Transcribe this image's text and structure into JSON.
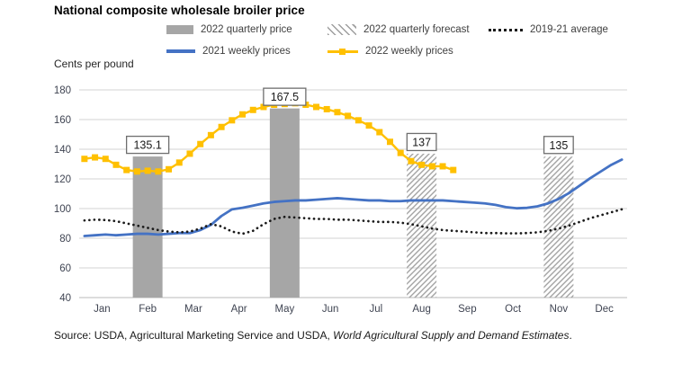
{
  "title": "National composite wholesale broiler price",
  "y_axis_title": "Cents per pound",
  "legend": {
    "row1": [
      {
        "label": "2022 quarterly price",
        "swatch": "bar-solid",
        "color": "#a6a6a6"
      },
      {
        "label": "2022 quarterly forecast",
        "swatch": "bar-hatched",
        "color": "#9e9e9e"
      },
      {
        "label": "2019-21 average",
        "swatch": "line-dotted",
        "color": "#1a1a1a"
      }
    ],
    "row2": [
      {
        "label": "2021 weekly prices",
        "swatch": "line-solid",
        "color": "#4472c4"
      },
      {
        "label": "2022 weekly prices",
        "swatch": "line-marker",
        "color": "#ffc000"
      }
    ]
  },
  "source": {
    "prefix": "Source: USDA, Agricultural Marketing Service and USDA, ",
    "italic": "World Agricultural Supply and Demand Estimates",
    "suffix": "."
  },
  "chart_data": {
    "type": "line+bar",
    "title": "National composite wholesale broiler price",
    "xlabel": "",
    "ylabel": "Cents per pound",
    "ylim": [
      40,
      180
    ],
    "y_ticks": [
      180,
      160,
      140,
      120,
      100,
      80,
      60,
      40
    ],
    "grid": "horizontal",
    "grid_color": "#dcdcdc",
    "axis_line_color": "#c8c8c8",
    "legend_position": "top",
    "months": [
      "Jan",
      "Feb",
      "Mar",
      "Apr",
      "May",
      "Jun",
      "Jul",
      "Aug",
      "Sep",
      "Oct",
      "Nov",
      "Dec"
    ],
    "x_unit": "weekly values, 52 weeks per year",
    "bar_color": "#a6a6a6",
    "hatch_color": "#a3a3a3",
    "bars": [
      {
        "name": "2022 Q1 quarterly price",
        "month": "Feb",
        "value": 135.1,
        "label": "135.1",
        "style": "solid"
      },
      {
        "name": "2022 Q2 quarterly price",
        "month": "May",
        "value": 167.5,
        "label": "167.5",
        "style": "solid"
      },
      {
        "name": "2022 Q3 quarterly forecast",
        "month": "Aug",
        "value": 137,
        "label": "137",
        "style": "hatched"
      },
      {
        "name": "2022 Q4 quarterly forecast",
        "month": "Nov",
        "value": 135,
        "label": "135",
        "style": "hatched"
      }
    ],
    "series": [
      {
        "name": "2021 weekly prices",
        "style": "solid",
        "color": "#4472c4",
        "values": [
          81.5,
          82,
          82.5,
          82,
          82.5,
          83,
          83,
          82.5,
          83,
          83.5,
          83.5,
          85.5,
          89,
          95,
          99.5,
          100.5,
          102,
          103.5,
          104.5,
          105,
          105.5,
          105.5,
          106,
          106.5,
          107,
          106.5,
          106,
          105.5,
          105.5,
          105,
          105,
          105.5,
          105.5,
          105.5,
          105.5,
          105,
          104.5,
          104,
          103.5,
          102.5,
          101,
          100.2,
          100.5,
          101.5,
          103.5,
          106.5,
          110.5,
          115.5,
          120.5,
          125,
          129.5,
          133
        ]
      },
      {
        "name": "2022 weekly prices",
        "style": "solid-markers",
        "color": "#ffc000",
        "values": [
          133.5,
          134.5,
          133.5,
          129.5,
          126,
          125,
          125.5,
          125,
          126.5,
          131,
          137,
          143.5,
          149.5,
          155,
          159.5,
          163.5,
          166.5,
          168.5,
          170,
          170.5,
          171,
          170,
          168.5,
          167,
          165,
          162.5,
          159.5,
          156,
          151.5,
          145,
          137.5,
          132,
          129.5,
          128.5,
          128.5,
          126
        ]
      },
      {
        "name": "2019-21 average",
        "style": "dotted",
        "color": "#1a1a1a",
        "values": [
          92,
          92.5,
          92.3,
          91.5,
          90,
          88.5,
          87,
          85.5,
          84.5,
          84,
          84.5,
          86.5,
          89.5,
          88,
          84.5,
          83,
          85,
          89.5,
          93,
          94.4,
          94,
          93.5,
          93,
          93,
          92.5,
          92.5,
          92,
          91.5,
          91,
          91,
          90.5,
          89.5,
          88,
          86.5,
          85.5,
          85,
          84.5,
          84,
          83.5,
          83.5,
          83.3,
          83.3,
          83.5,
          84,
          85,
          86.5,
          88.5,
          91,
          93.5,
          95.5,
          97.5,
          99.5
        ]
      }
    ]
  }
}
